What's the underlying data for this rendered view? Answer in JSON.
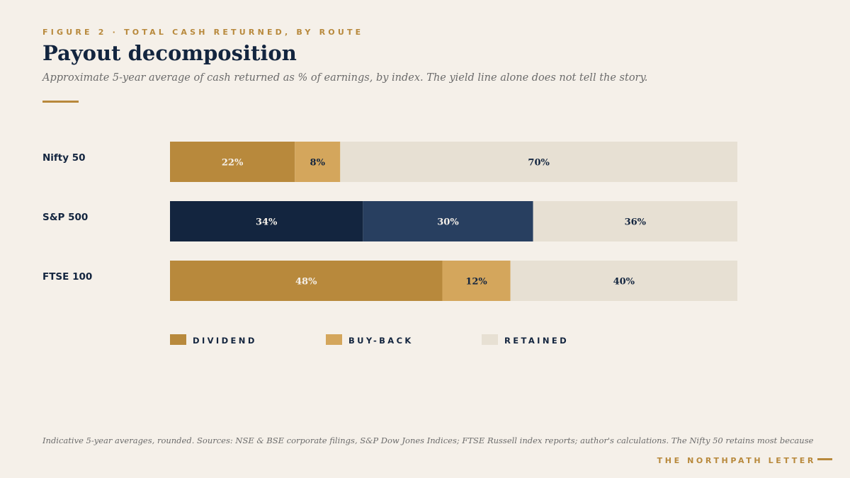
{
  "header": {
    "eyebrow": "FIGURE 2 · TOTAL CASH RETURNED, BY ROUTE",
    "title": "Payout decomposition",
    "subtitle": "Approximate 5-year average of cash returned as % of earnings, by index. The yield line alone does not tell the story."
  },
  "chart_data": {
    "type": "bar",
    "orientation": "horizontal",
    "stacked": true,
    "title": "Payout decomposition",
    "categories": [
      "Nifty 50",
      "S&P 500",
      "FTSE 100"
    ],
    "series": [
      {
        "name": "DIVIDEND",
        "values": [
          22,
          34,
          48
        ]
      },
      {
        "name": "BUY-BACK",
        "values": [
          8,
          30,
          12
        ]
      },
      {
        "name": "RETAINED",
        "values": [
          70,
          36,
          40
        ]
      }
    ],
    "segment_labels": [
      [
        "22%",
        "8%",
        "70%"
      ],
      [
        "34%",
        "30%",
        "36%"
      ],
      [
        "48%",
        "12%",
        "40%"
      ]
    ],
    "colors": {
      "Nifty 50": [
        "#b8893c",
        "#d4a65c",
        "#e7e0d3"
      ],
      "S&P 500": [
        "#13253f",
        "#283f60",
        "#e7e0d3"
      ],
      "FTSE 100": [
        "#b8893c",
        "#d4a65c",
        "#e7e0d3"
      ]
    },
    "label_colors": {
      "Nifty 50": [
        "#f5f0e9",
        "#13253f",
        "#13253f"
      ],
      "S&P 500": [
        "#f5f0e9",
        "#f5f0e9",
        "#13253f"
      ],
      "FTSE 100": [
        "#f5f0e9",
        "#13253f",
        "#13253f"
      ]
    },
    "legend": [
      {
        "name": "DIVIDEND",
        "color": "#b8893c"
      },
      {
        "name": "BUY-BACK",
        "color": "#d4a65c"
      },
      {
        "name": "RETAINED",
        "color": "#e7e0d3"
      }
    ],
    "xlim": [
      0,
      100
    ],
    "grid": false,
    "legend_position": "bottom"
  },
  "footer": {
    "note": "Indicative 5-year averages, rounded. Sources: NSE & BSE corporate filings, S&P Dow Jones Indices; FTSE Russell index reports; author's calculations. The Nifty 50 retains most because",
    "brand": "THE NORTHPATH LETTER"
  }
}
